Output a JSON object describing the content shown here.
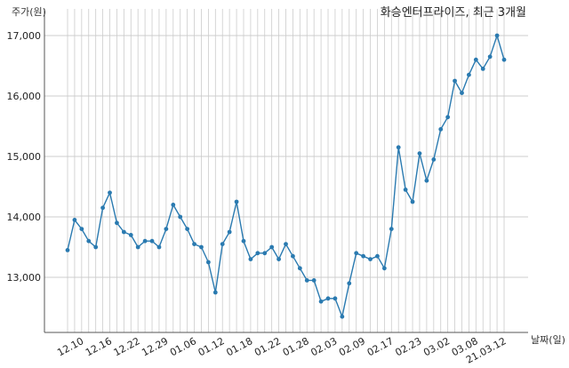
{
  "chart_data": {
    "type": "line",
    "title": "화승엔터프라이즈, 최근 3개월",
    "xlabel": "날짜(일)",
    "ylabel": "주가(원)",
    "ylim": [
      12000,
      17300
    ],
    "yticks": [
      13000,
      14000,
      15000,
      16000,
      17000
    ],
    "ytick_labels": [
      "13,000",
      "14,000",
      "15,000",
      "16,000",
      "17,000"
    ],
    "xtick_labels": [
      "12.10",
      "12.16",
      "12.22",
      "12.29",
      "01.06",
      "01.12",
      "01.18",
      "01.22",
      "01.28",
      "02.03",
      "02.09",
      "02.17",
      "02.23",
      "03.02",
      "03.08",
      "21.03.12"
    ],
    "xtick_index": [
      2,
      6,
      10,
      14,
      18,
      22,
      26,
      30,
      34,
      38,
      42,
      46,
      50,
      54,
      58,
      62
    ],
    "grid": "vertical and horizontal",
    "colors": {
      "line": "#2a7ab0",
      "marker": "#2a7ab0",
      "grid": "#cccccc",
      "axis": "#555555"
    },
    "series": [
      {
        "values": [
          13450,
          13950,
          13800,
          13600,
          13500,
          14150,
          14400,
          13900,
          13750,
          13700,
          13500,
          13600,
          13600,
          13500,
          13800,
          14200,
          14000,
          13800,
          13550,
          13500,
          13250,
          12750,
          13550,
          13750,
          14250,
          13600,
          13300,
          13400,
          13400,
          13500,
          13300,
          13550,
          13350,
          13150,
          12950,
          12950,
          12600,
          12650,
          12650,
          12350,
          12900,
          13400,
          13350,
          13300,
          13350,
          13150,
          13800,
          15150,
          14450,
          14250,
          15050,
          14600,
          14950,
          15450,
          15650,
          16250,
          16050,
          16350,
          16600,
          16450,
          16650,
          17000,
          16600
        ]
      }
    ]
  }
}
